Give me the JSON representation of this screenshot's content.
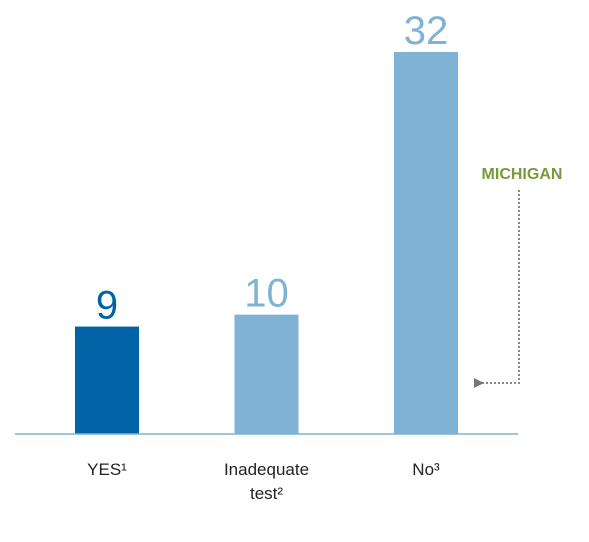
{
  "chart_data": {
    "type": "bar",
    "categories": [
      "YES¹",
      "Inadequate test²",
      "No³"
    ],
    "values": [
      9,
      10,
      32
    ],
    "colors": [
      "#0063a6",
      "#7fb2d4",
      "#7fb2d4"
    ],
    "ylim": [
      0,
      32
    ],
    "annotation": "MICHIGAN"
  }
}
